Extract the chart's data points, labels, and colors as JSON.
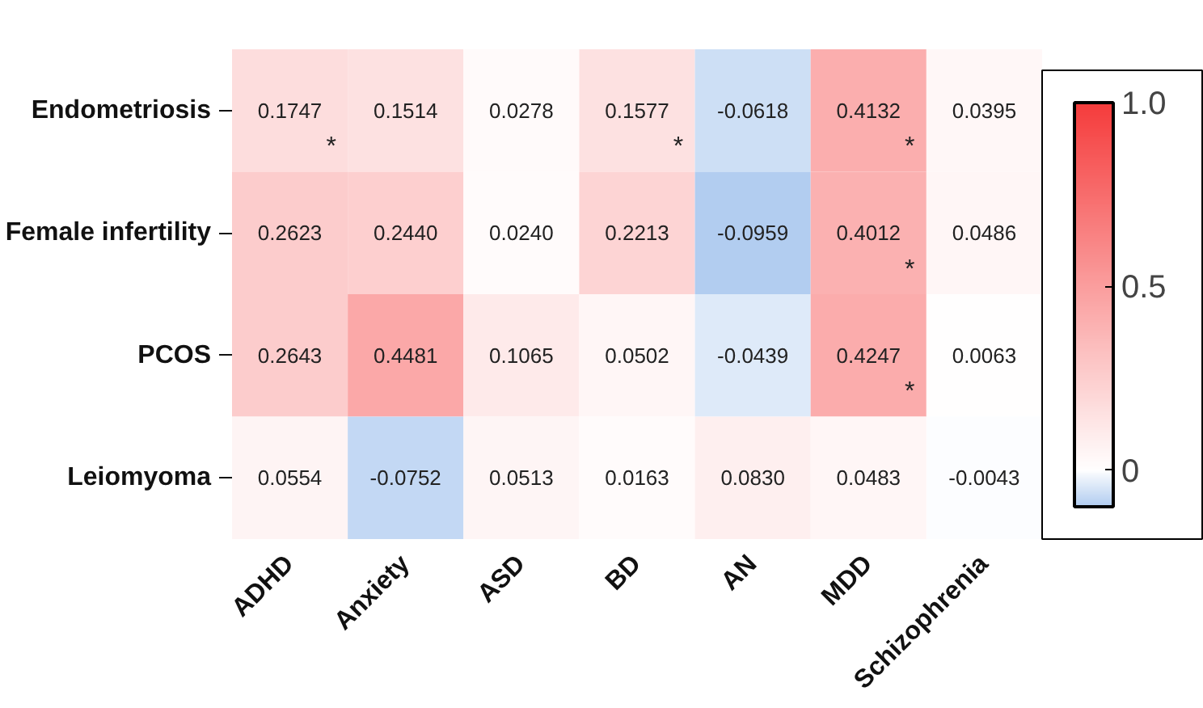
{
  "chart_data": {
    "type": "heatmap",
    "categories": [
      "ADHD",
      "Anxiety",
      "ASD",
      "BD",
      "AN",
      "MDD",
      "Schizophrenia"
    ],
    "y_categories": [
      "Endometriosis",
      "Female infertility",
      "PCOS",
      "Leiomyoma"
    ],
    "cells": [
      [
        0.1747,
        0.1514,
        0.0278,
        0.1577,
        -0.0618,
        0.4132,
        0.0395
      ],
      [
        0.2623,
        0.244,
        0.024,
        0.2213,
        -0.0959,
        0.4012,
        0.0486
      ],
      [
        0.2643,
        0.4481,
        0.1065,
        0.0502,
        -0.0439,
        0.4247,
        0.0063
      ],
      [
        0.0554,
        -0.0752,
        0.0513,
        0.0163,
        0.083,
        0.0483,
        -0.0043
      ]
    ],
    "cell_labels": [
      [
        "0.1747\n*",
        "0.1514",
        "0.0278",
        "0.1577\n*",
        "-0.0618",
        "0.4132\n*",
        "0.0395"
      ],
      [
        "0.2623",
        "0.2440",
        "0.0240",
        "0.2213",
        "-0.0959",
        "0.4012\n*",
        "0.0486"
      ],
      [
        "0.2643",
        "0.4481",
        "0.1065",
        "0.0502",
        "-0.0439",
        "0.4247\n*",
        "0.0063"
      ],
      [
        "0.0554",
        "-0.0752",
        "0.0513",
        "0.0163",
        "0.0830",
        "0.0483",
        "-0.0043"
      ]
    ],
    "clim": [
      -0.1,
      1.0
    ],
    "cticks": [
      0,
      0.5,
      {
        "value": 1.0,
        "label": "1.0"
      }
    ],
    "colors": [
      "#b0ccf0",
      "#ffffff",
      "#f53c3c"
    ]
  }
}
